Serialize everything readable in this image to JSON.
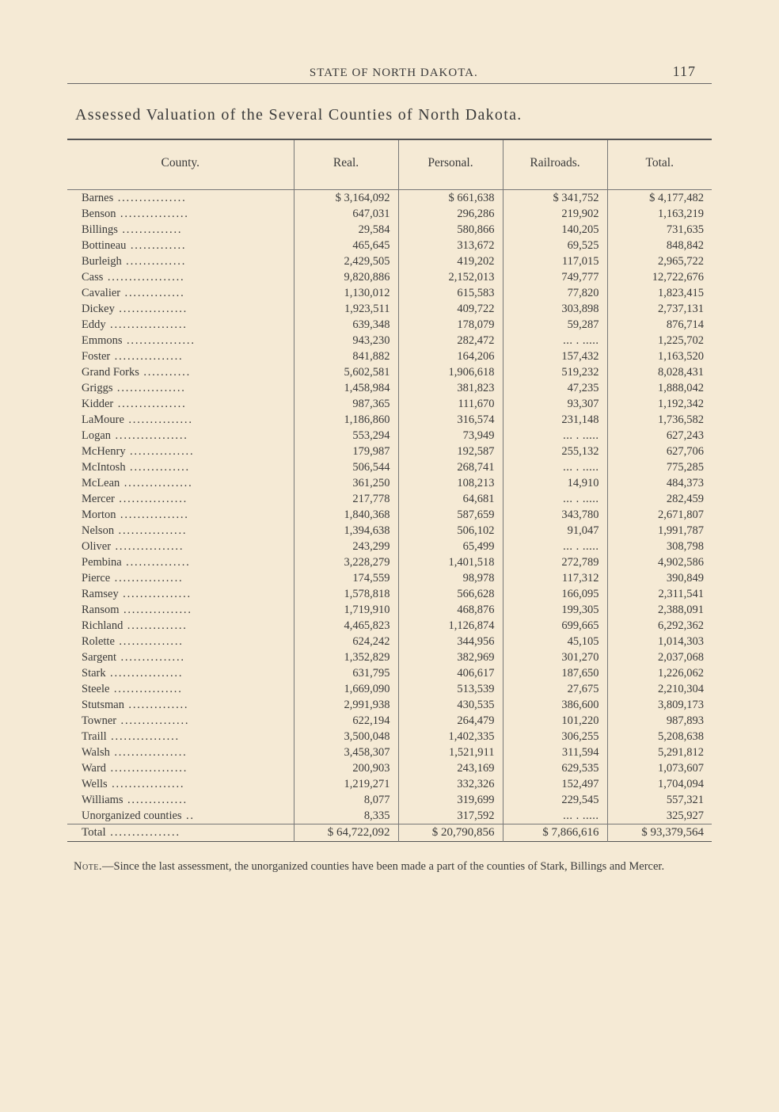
{
  "page": {
    "running_head": "STATE OF NORTH DAKOTA.",
    "page_number": "117"
  },
  "table": {
    "title": "Assessed Valuation of the Several Counties of North Dakota.",
    "columns": [
      "County.",
      "Real.",
      "Personal.",
      "Railroads.",
      "Total."
    ],
    "rows": [
      {
        "county": "Barnes",
        "real": "$ 3,164,092",
        "personal": "$    661,638",
        "railroads": "$    341,752",
        "total": "$ 4,177,482"
      },
      {
        "county": "Benson",
        "real": "647,031",
        "personal": "296,286",
        "railroads": "219,902",
        "total": "1,163,219"
      },
      {
        "county": "Billings",
        "real": "29,584",
        "personal": "580,866",
        "railroads": "140,205",
        "total": "731,635"
      },
      {
        "county": "Bottineau",
        "real": "465,645",
        "personal": "313,672",
        "railroads": "69,525",
        "total": "848,842"
      },
      {
        "county": "Burleigh",
        "real": "2,429,505",
        "personal": "419,202",
        "railroads": "117,015",
        "total": "2,965,722"
      },
      {
        "county": "Cass",
        "real": "9,820,886",
        "personal": "2,152,013",
        "railroads": "749,777",
        "total": "12,722,676"
      },
      {
        "county": "Cavalier",
        "real": "1,130,012",
        "personal": "615,583",
        "railroads": "77,820",
        "total": "1,823,415"
      },
      {
        "county": "Dickey",
        "real": "1,923,511",
        "personal": "409,722",
        "railroads": "303,898",
        "total": "2,737,131"
      },
      {
        "county": "Eddy",
        "real": "639,348",
        "personal": "178,079",
        "railroads": "59,287",
        "total": "876,714"
      },
      {
        "county": "Emmons",
        "real": "943,230",
        "personal": "282,472",
        "railroads": "",
        "total": "1,225,702"
      },
      {
        "county": "Foster",
        "real": "841,882",
        "personal": "164,206",
        "railroads": "157,432",
        "total": "1,163,520"
      },
      {
        "county": "Grand Forks",
        "real": "5,602,581",
        "personal": "1,906,618",
        "railroads": "519,232",
        "total": "8,028,431"
      },
      {
        "county": "Griggs",
        "real": "1,458,984",
        "personal": "381,823",
        "railroads": "47,235",
        "total": "1,888,042"
      },
      {
        "county": "Kidder",
        "real": "987,365",
        "personal": "111,670",
        "railroads": "93,307",
        "total": "1,192,342"
      },
      {
        "county": "LaMoure",
        "real": "1,186,860",
        "personal": "316,574",
        "railroads": "231,148",
        "total": "1,736,582"
      },
      {
        "county": "Logan",
        "real": "553,294",
        "personal": "73,949",
        "railroads": "",
        "total": "627,243"
      },
      {
        "county": "McHenry",
        "real": "179,987",
        "personal": "192,587",
        "railroads": "255,132",
        "total": "627,706"
      },
      {
        "county": "McIntosh",
        "real": "506,544",
        "personal": "268,741",
        "railroads": "",
        "total": "775,285"
      },
      {
        "county": "McLean",
        "real": "361,250",
        "personal": "108,213",
        "railroads": "14,910",
        "total": "484,373"
      },
      {
        "county": "Mercer",
        "real": "217,778",
        "personal": "64,681",
        "railroads": "",
        "total": "282,459"
      },
      {
        "county": "Morton",
        "real": "1,840,368",
        "personal": "587,659",
        "railroads": "343,780",
        "total": "2,671,807"
      },
      {
        "county": "Nelson",
        "real": "1,394,638",
        "personal": "506,102",
        "railroads": "91,047",
        "total": "1,991,787"
      },
      {
        "county": "Oliver",
        "real": "243,299",
        "personal": "65,499",
        "railroads": "",
        "total": "308,798"
      },
      {
        "county": "Pembina",
        "real": "3,228,279",
        "personal": "1,401,518",
        "railroads": "272,789",
        "total": "4,902,586"
      },
      {
        "county": "Pierce",
        "real": "174,559",
        "personal": "98,978",
        "railroads": "117,312",
        "total": "390,849"
      },
      {
        "county": "Ramsey",
        "real": "1,578,818",
        "personal": "566,628",
        "railroads": "166,095",
        "total": "2,311,541"
      },
      {
        "county": "Ransom",
        "real": "1,719,910",
        "personal": "468,876",
        "railroads": "199,305",
        "total": "2,388,091"
      },
      {
        "county": "Richland",
        "real": "4,465,823",
        "personal": "1,126,874",
        "railroads": "699,665",
        "total": "6,292,362"
      },
      {
        "county": "Rolette",
        "real": "624,242",
        "personal": "344,956",
        "railroads": "45,105",
        "total": "1,014,303"
      },
      {
        "county": "Sargent",
        "real": "1,352,829",
        "personal": "382,969",
        "railroads": "301,270",
        "total": "2,037,068"
      },
      {
        "county": "Stark",
        "real": "631,795",
        "personal": "406,617",
        "railroads": "187,650",
        "total": "1,226,062"
      },
      {
        "county": "Steele",
        "real": "1,669,090",
        "personal": "513,539",
        "railroads": "27,675",
        "total": "2,210,304"
      },
      {
        "county": "Stutsman",
        "real": "2,991,938",
        "personal": "430,535",
        "railroads": "386,600",
        "total": "3,809,173"
      },
      {
        "county": "Towner",
        "real": "622,194",
        "personal": "264,479",
        "railroads": "101,220",
        "total": "987,893"
      },
      {
        "county": "Traill",
        "real": "3,500,048",
        "personal": "1,402,335",
        "railroads": "306,255",
        "total": "5,208,638"
      },
      {
        "county": "Walsh",
        "real": "3,458,307",
        "personal": "1,521,911",
        "railroads": "311,594",
        "total": "5,291,812"
      },
      {
        "county": "Ward",
        "real": "200,903",
        "personal": "243,169",
        "railroads": "629,535",
        "total": "1,073,607"
      },
      {
        "county": "Wells",
        "real": "1,219,271",
        "personal": "332,326",
        "railroads": "152,497",
        "total": "1,704,094"
      },
      {
        "county": "Williams",
        "real": "8,077",
        "personal": "319,699",
        "railroads": "229,545",
        "total": "557,321"
      },
      {
        "county": "Unorganized counties",
        "real": "8,335",
        "personal": "317,592",
        "railroads": "",
        "total": "325,927"
      }
    ],
    "total": {
      "label": "Total",
      "real": "$ 64,722,092",
      "personal": "$ 20,790,856",
      "railroads": "$  7,866,616",
      "total": "$ 93,379,564"
    }
  },
  "footnote": {
    "label": "Note.",
    "text": "—Since the last assessment, the unorganized counties have been made a part of the counties of Stark, Billings and Mercer."
  }
}
